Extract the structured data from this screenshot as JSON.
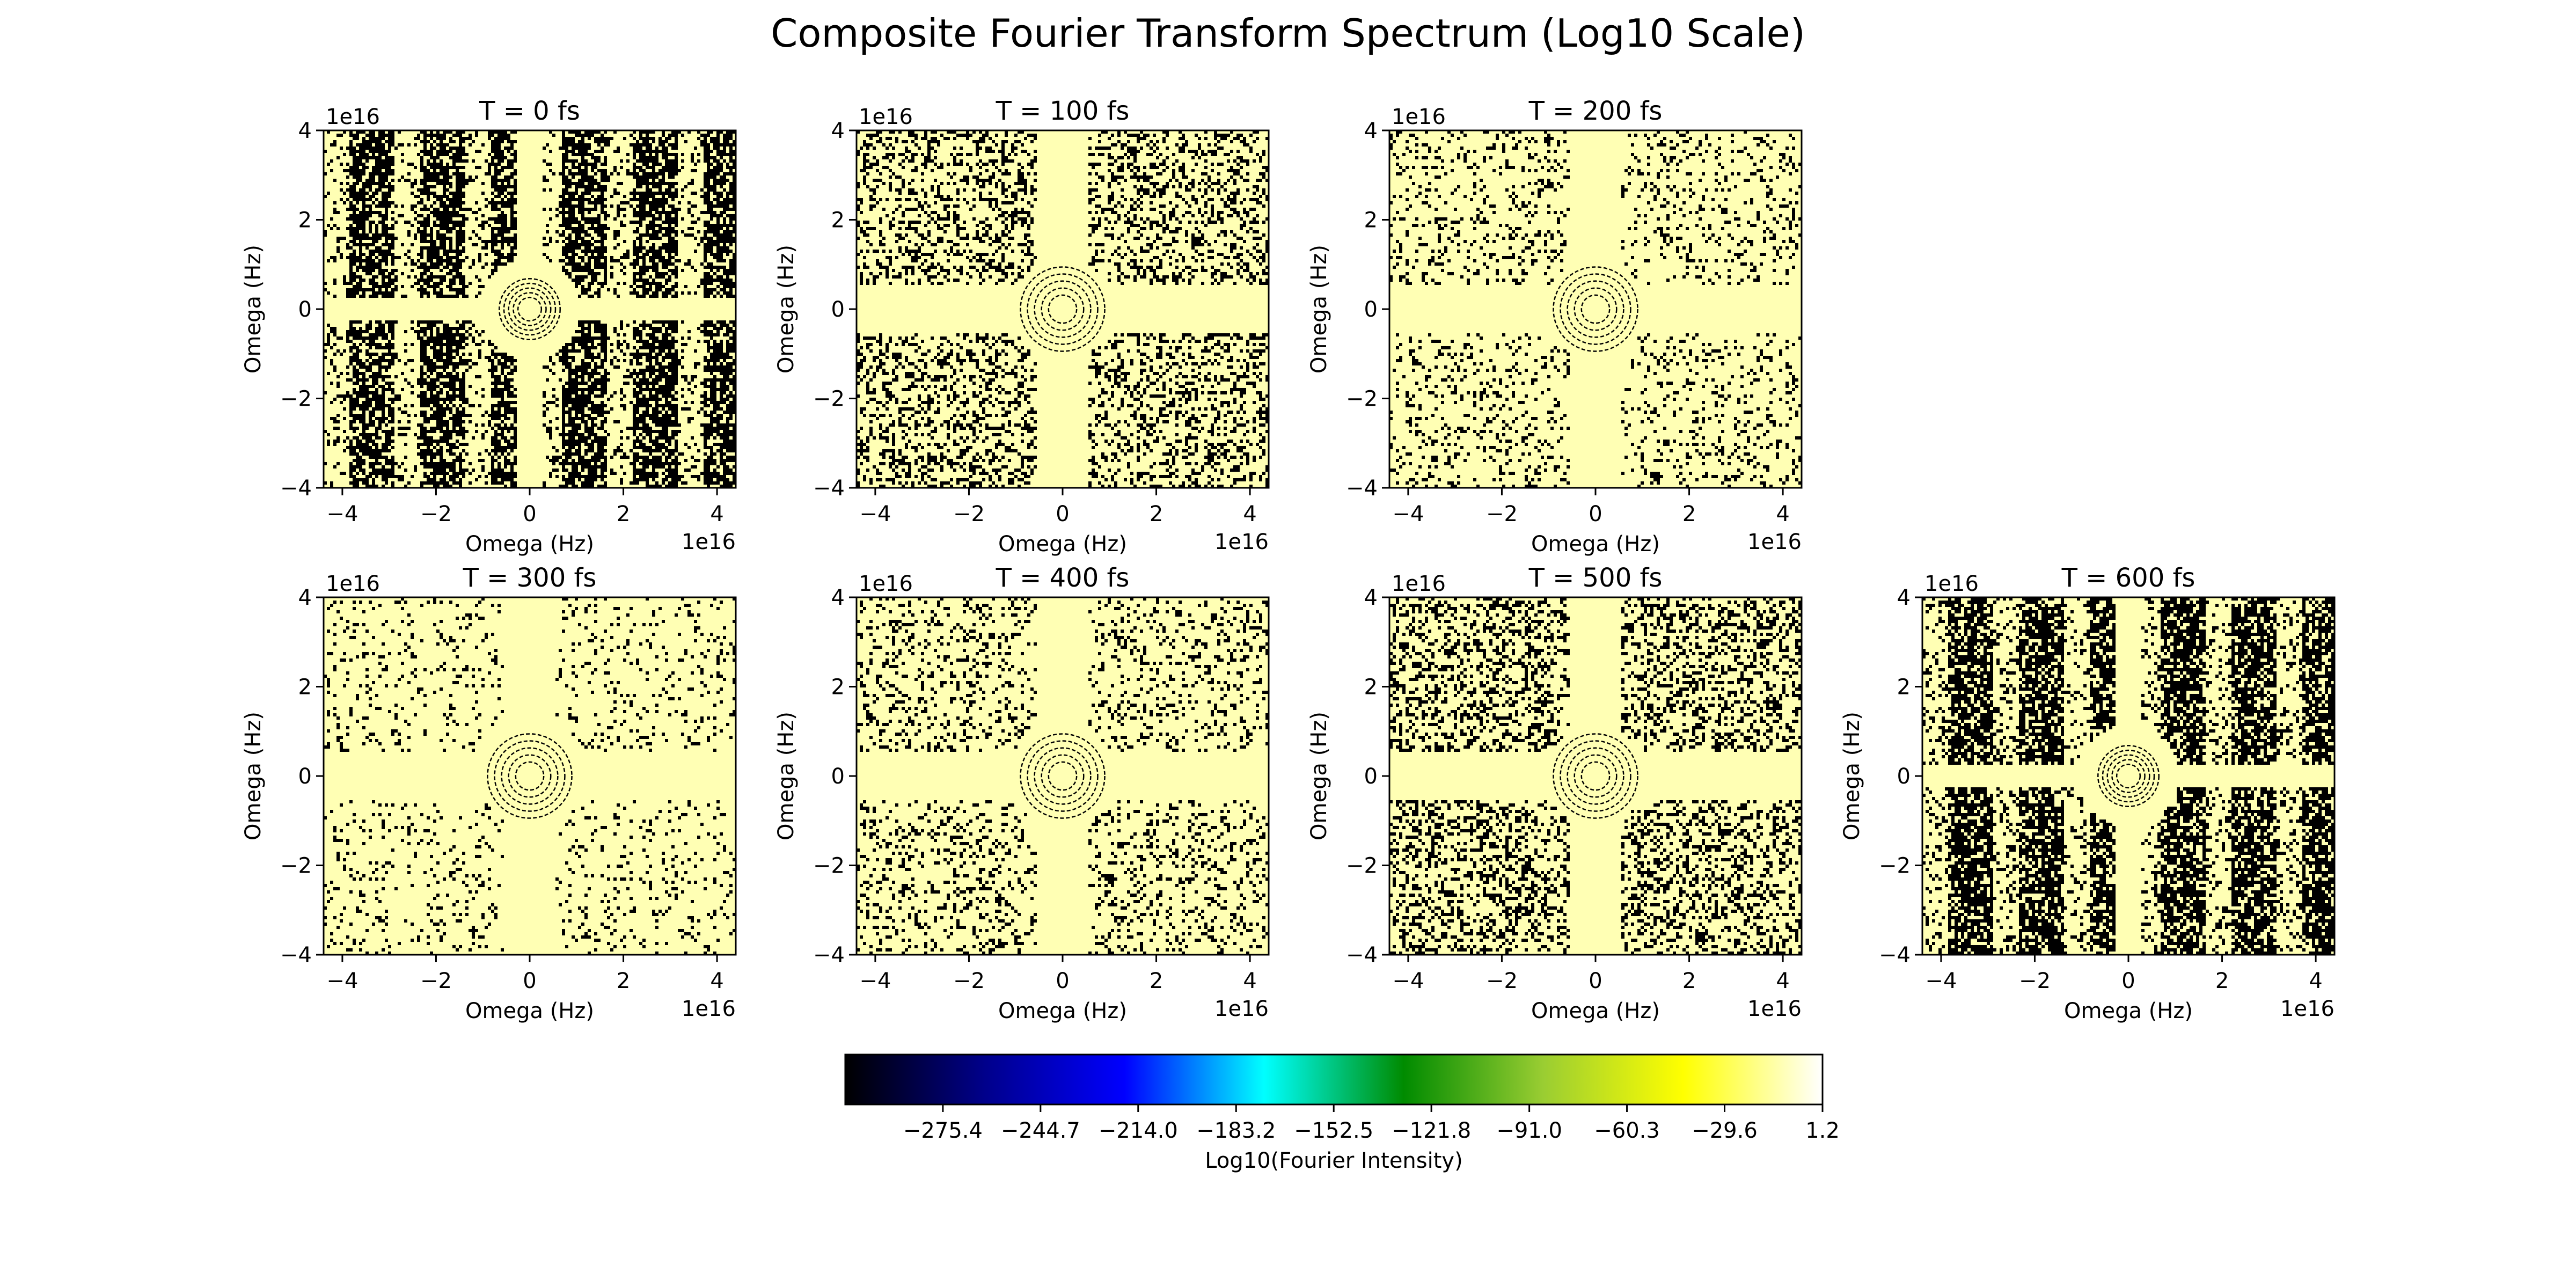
{
  "chart_data": {
    "type": "heatmap",
    "title": "Composite Fourier Transform Spectrum (Log10 Scale)",
    "panels": [
      {
        "title": "T = 0 fs",
        "xlabel": "Omega (Hz)",
        "ylabel": "Omega (Hz)",
        "xlim": [
          -4.4,
          4.4
        ],
        "ylim": [
          -4,
          4
        ],
        "scale_label": "1e16",
        "x_ticks": [
          "−4",
          "−2",
          "0",
          "2",
          "4"
        ],
        "y_ticks": [
          "−4",
          "−2",
          "0",
          "2",
          "4"
        ],
        "noise_density": 0.55,
        "ring_radii": [
          0.25,
          0.35,
          0.45,
          0.55,
          0.65
        ]
      },
      {
        "title": "T = 100 fs",
        "xlabel": "Omega (Hz)",
        "ylabel": "Omega (Hz)",
        "xlim": [
          -4.4,
          4.4
        ],
        "ylim": [
          -4,
          4
        ],
        "scale_label": "1e16",
        "x_ticks": [
          "−4",
          "−2",
          "0",
          "2",
          "4"
        ],
        "y_ticks": [
          "−4",
          "−2",
          "0",
          "2",
          "4"
        ],
        "noise_density": 0.3,
        "ring_radii": [
          0.3,
          0.45,
          0.6,
          0.75,
          0.9
        ]
      },
      {
        "title": "T = 200 fs",
        "xlabel": "Omega (Hz)",
        "ylabel": "Omega (Hz)",
        "xlim": [
          -4.4,
          4.4
        ],
        "ylim": [
          -4,
          4
        ],
        "scale_label": "1e16",
        "x_ticks": [
          "−4",
          "−2",
          "0",
          "2",
          "4"
        ],
        "y_ticks": [
          "−4",
          "−2",
          "0",
          "2",
          "4"
        ],
        "noise_density": 0.15,
        "ring_radii": [
          0.3,
          0.45,
          0.6,
          0.75,
          0.9
        ]
      },
      {
        "title": "T = 300 fs",
        "xlabel": "Omega (Hz)",
        "ylabel": "Omega (Hz)",
        "xlim": [
          -4.4,
          4.4
        ],
        "ylim": [
          -4,
          4
        ],
        "scale_label": "1e16",
        "x_ticks": [
          "−4",
          "−2",
          "0",
          "2",
          "4"
        ],
        "y_ticks": [
          "−4",
          "−2",
          "0",
          "2",
          "4"
        ],
        "noise_density": 0.1,
        "ring_radii": [
          0.3,
          0.45,
          0.6,
          0.75,
          0.9
        ]
      },
      {
        "title": "T = 400 fs",
        "xlabel": "Omega (Hz)",
        "ylabel": "Omega (Hz)",
        "xlim": [
          -4.4,
          4.4
        ],
        "ylim": [
          -4,
          4
        ],
        "scale_label": "1e16",
        "x_ticks": [
          "−4",
          "−2",
          "0",
          "2",
          "4"
        ],
        "y_ticks": [
          "−4",
          "−2",
          "0",
          "2",
          "4"
        ],
        "noise_density": 0.18,
        "ring_radii": [
          0.3,
          0.45,
          0.6,
          0.75,
          0.9
        ]
      },
      {
        "title": "T = 500 fs",
        "xlabel": "Omega (Hz)",
        "ylabel": "Omega (Hz)",
        "xlim": [
          -4.4,
          4.4
        ],
        "ylim": [
          -4,
          4
        ],
        "scale_label": "1e16",
        "x_ticks": [
          "−4",
          "−2",
          "0",
          "2",
          "4"
        ],
        "y_ticks": [
          "−4",
          "−2",
          "0",
          "2",
          "4"
        ],
        "noise_density": 0.32,
        "ring_radii": [
          0.3,
          0.45,
          0.6,
          0.75,
          0.9
        ]
      },
      {
        "title": "T = 600 fs",
        "xlabel": "Omega (Hz)",
        "ylabel": "Omega (Hz)",
        "xlim": [
          -4.4,
          4.4
        ],
        "ylim": [
          -4,
          4
        ],
        "scale_label": "1e16",
        "x_ticks": [
          "−4",
          "−2",
          "0",
          "2",
          "4"
        ],
        "y_ticks": [
          "−4",
          "−2",
          "0",
          "2",
          "4"
        ],
        "noise_density": 0.55,
        "ring_radii": [
          0.25,
          0.35,
          0.45,
          0.55,
          0.65
        ]
      }
    ],
    "colorbar": {
      "label": "Log10(Fourier Intensity)",
      "range": [
        -306.1,
        1.2
      ],
      "ticks": [
        -275.4,
        -244.7,
        -214.0,
        -183.2,
        -152.5,
        -121.8,
        -91.0,
        -60.3,
        -29.6,
        1.2
      ],
      "tick_labels": [
        "−275.4",
        "−244.7",
        "−214.0",
        "−183.2",
        "−152.5",
        "−121.8",
        "−91.0",
        "−60.3",
        "−29.6",
        "1.2"
      ],
      "colormap": [
        "#000000",
        "#00008b",
        "#0000ff",
        "#00ffff",
        "#008b00",
        "#9acd32",
        "#ffff00",
        "#ffffff"
      ]
    },
    "colors": {
      "background": "#ffffb4",
      "noise": "#000000"
    }
  }
}
